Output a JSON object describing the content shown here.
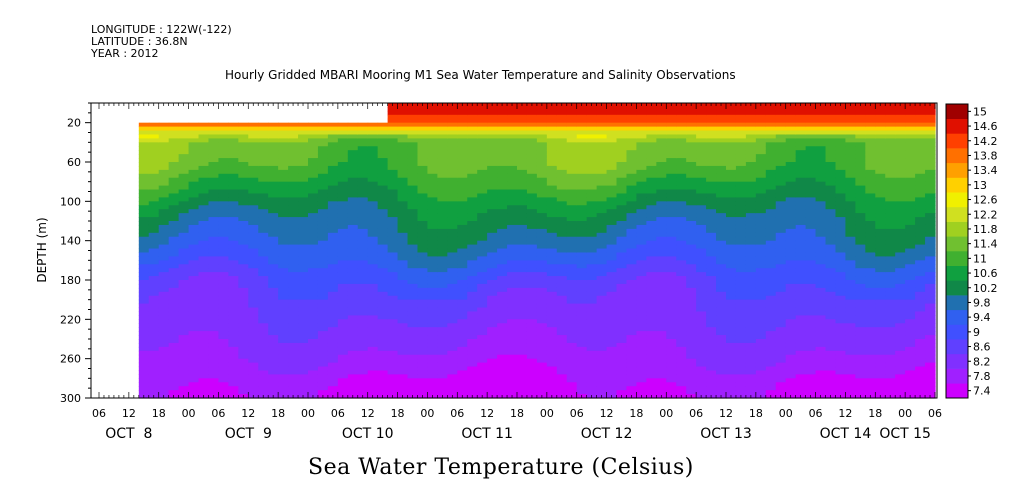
{
  "header": {
    "longitude": "LONGITUDE : 122W(-122)",
    "latitude": "LATITUDE : 36.8N",
    "year": "YEAR : 2012",
    "title": "Hourly Gridded MBARI Mooring M1 Sea Water Temperature and Salinity Observations"
  },
  "footer": {
    "variable_label": "Sea Water Temperature (Celsius)"
  },
  "chart_data": {
    "type": "heatmap",
    "title": "Hourly Gridded MBARI Mooring M1 Sea Water Temperature and Salinity Observations",
    "ylabel": "DEPTH (m)",
    "xlabel": "",
    "colorbar_label": "Sea Water Temperature (Celsius)",
    "y_inverted": true,
    "ylim": [
      300,
      0
    ],
    "y_ticks": [
      20,
      60,
      100,
      140,
      180,
      220,
      260,
      300
    ],
    "x_hour_ticks": [
      "06",
      "12",
      "18",
      "00",
      "06",
      "12",
      "18",
      "00",
      "06",
      "12",
      "18",
      "00",
      "06",
      "12",
      "18",
      "00",
      "06",
      "12",
      "18",
      "00",
      "06",
      "12",
      "18",
      "00",
      "06",
      "12",
      "18",
      "00",
      "06"
    ],
    "x_day_labels": [
      "OCT  8",
      "OCT  9",
      "OCT 10",
      "OCT 11",
      "OCT 12",
      "OCT 13",
      "OCT 14",
      "OCT 15"
    ],
    "colorbar_levels": [
      7.4,
      7.8,
      8.2,
      8.6,
      9,
      9.4,
      9.8,
      10.2,
      10.6,
      11,
      11.4,
      11.8,
      12.2,
      12.6,
      13,
      13.4,
      13.8,
      14.2,
      14.6,
      15
    ],
    "colorbar_colors": [
      "#cc00ff",
      "#a020ff",
      "#8030ff",
      "#6040ff",
      "#4050ff",
      "#3060f0",
      "#2070b0",
      "#108848",
      "#10a040",
      "#40b030",
      "#70c030",
      "#a0d020",
      "#d0e020",
      "#f0f000",
      "#ffd000",
      "#ffa000",
      "#ff7000",
      "#ff4000",
      "#e01000",
      "#a00000"
    ],
    "data_start_hour_from_axis_start": 8,
    "depth_profile_mean": [
      {
        "depth": 10,
        "temp": 14.8
      },
      {
        "depth": 20,
        "temp": 14.2
      },
      {
        "depth": 30,
        "temp": 12.4
      },
      {
        "depth": 40,
        "temp": 11.6
      },
      {
        "depth": 60,
        "temp": 11.5
      },
      {
        "depth": 80,
        "temp": 11.1
      },
      {
        "depth": 100,
        "temp": 10.6
      },
      {
        "depth": 120,
        "temp": 10.2
      },
      {
        "depth": 140,
        "temp": 9.9
      },
      {
        "depth": 160,
        "temp": 9.5
      },
      {
        "depth": 180,
        "temp": 9.0
      },
      {
        "depth": 200,
        "temp": 8.7
      },
      {
        "depth": 220,
        "temp": 8.5
      },
      {
        "depth": 240,
        "temp": 8.3
      },
      {
        "depth": 260,
        "temp": 8.1
      },
      {
        "depth": 280,
        "temp": 7.8
      },
      {
        "depth": 300,
        "temp": 7.6
      }
    ]
  }
}
